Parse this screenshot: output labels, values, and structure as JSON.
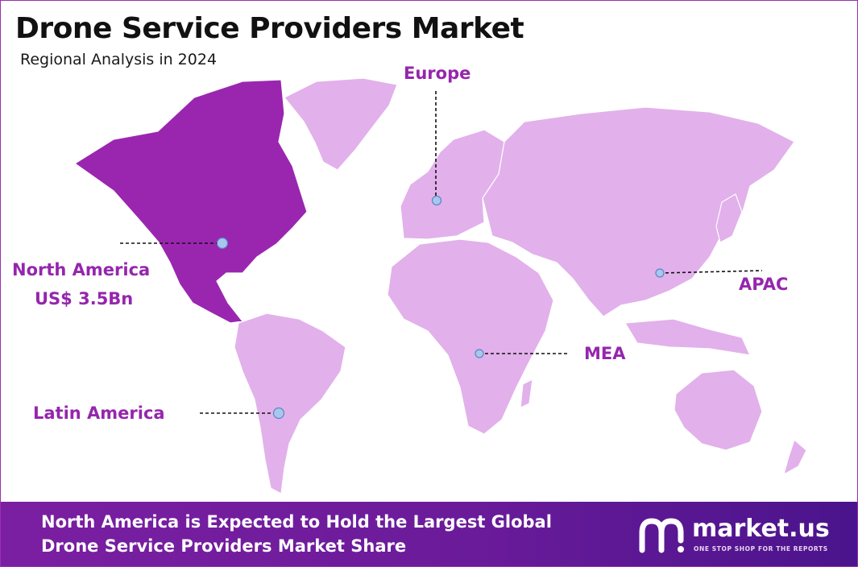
{
  "title": "Drone Service Providers Market",
  "subtitle": "Regional Analysis in 2024",
  "colors": {
    "highlight_region": "#9a26b0",
    "other_region": "#e2b0eb",
    "label": "#9526ad",
    "marker": "#a9c6ec",
    "footer_bg": "#6a1b9a"
  },
  "regions": {
    "north_america": {
      "name": "North America",
      "value": "US$ 3.5Bn",
      "highlighted": true
    },
    "europe": {
      "name": "Europe"
    },
    "apac": {
      "name": "APAC"
    },
    "mea": {
      "name": "MEA"
    },
    "latin_america": {
      "name": "Latin America"
    }
  },
  "footer": {
    "line1": "North America is Expected to Hold the Largest Global",
    "line2": "Drone Service Providers Market Share"
  },
  "brand": {
    "name": "market.us",
    "tagline": "ONE STOP SHOP FOR THE REPORTS",
    "logo_icon": "market-us-logo-icon"
  }
}
